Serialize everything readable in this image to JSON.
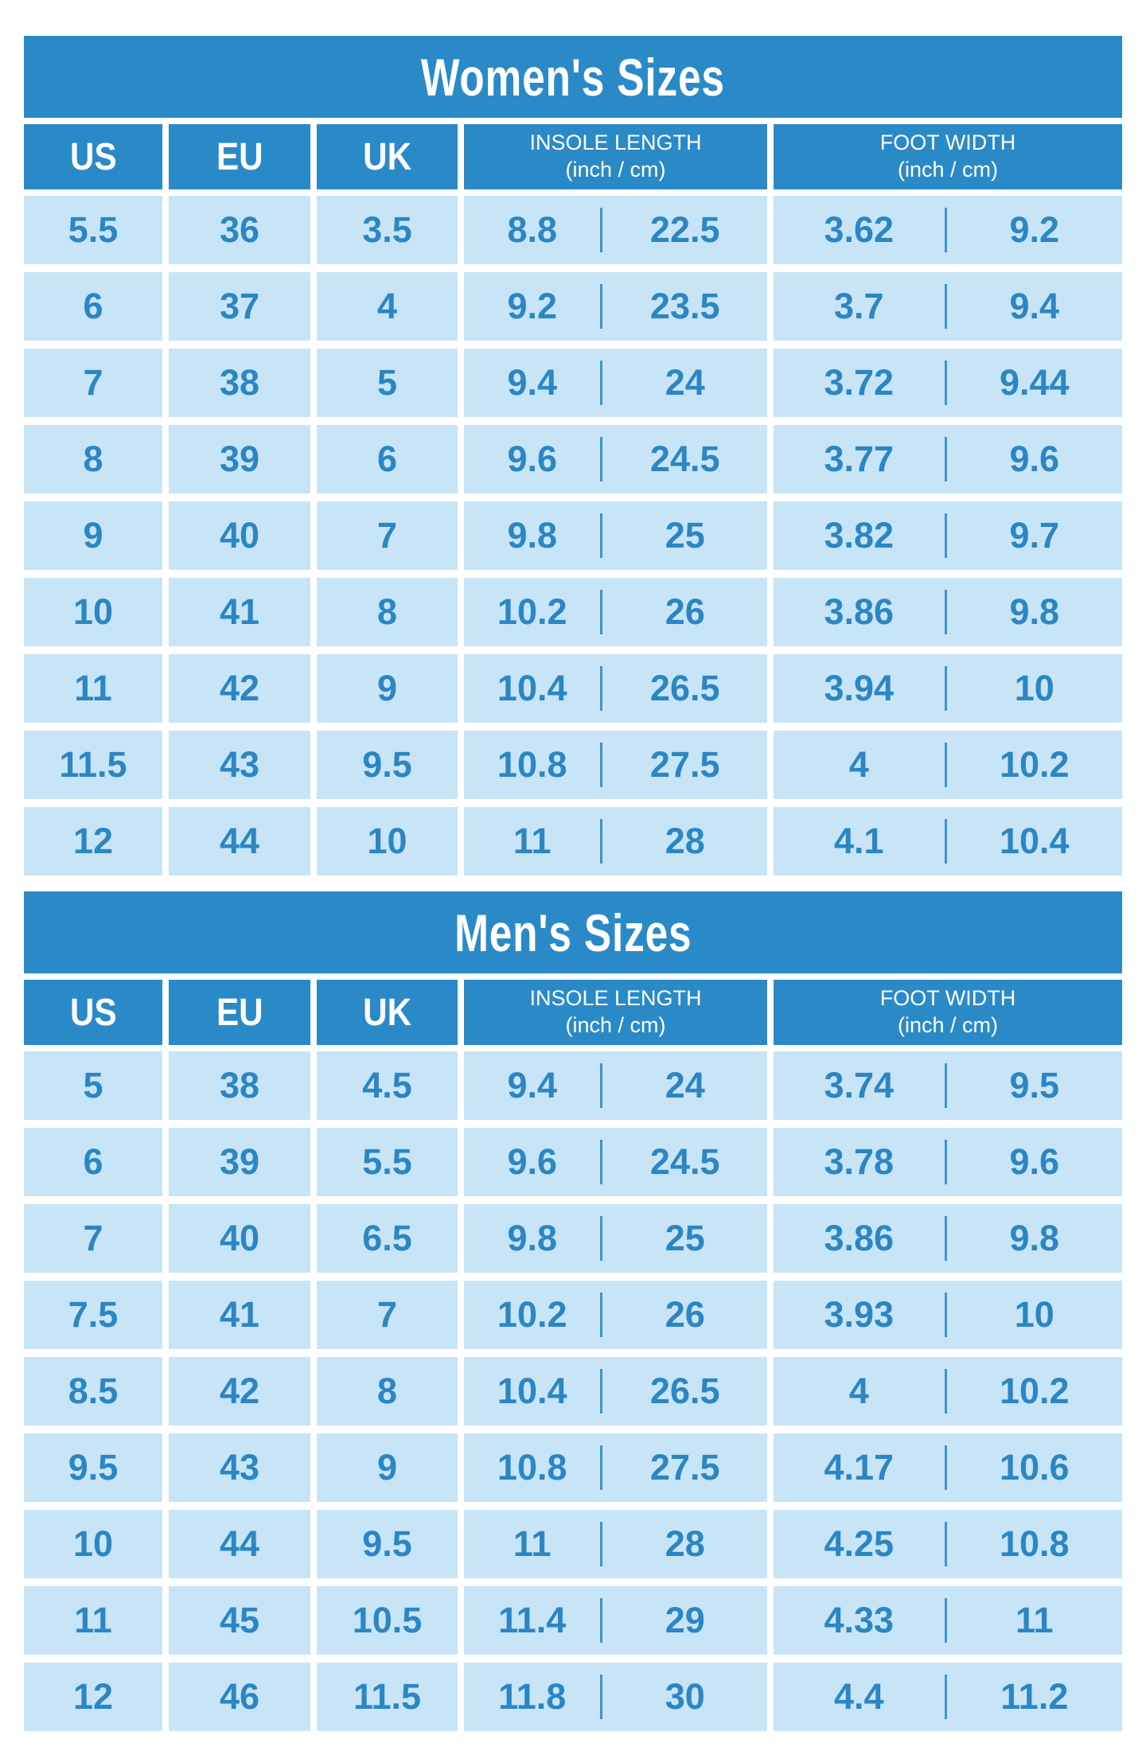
{
  "colors": {
    "header_blue": "#2a8ac8",
    "cell_blue": "#c8e4f7",
    "number_blue": "#2b86c3",
    "divider_blue": "#3e94cd",
    "background": "#ffffff",
    "header_text": "#ffffff"
  },
  "chart_data": [
    {
      "type": "table",
      "title": "Women's Sizes",
      "header": {
        "us": "US",
        "eu": "EU",
        "uk": "UK",
        "insole_line1": "INSOLE LENGTH",
        "insole_line2": "(inch / cm)",
        "foot_line1": "FOOT WIDTH",
        "foot_line2": "(inch / cm)"
      },
      "columns": [
        "US",
        "EU",
        "UK",
        "INSOLE LENGTH inch",
        "INSOLE LENGTH cm",
        "FOOT WIDTH inch",
        "FOOT WIDTH cm"
      ],
      "rows": [
        [
          "5.5",
          "36",
          "3.5",
          "8.8",
          "22.5",
          "3.62",
          "9.2"
        ],
        [
          "6",
          "37",
          "4",
          "9.2",
          "23.5",
          "3.7",
          "9.4"
        ],
        [
          "7",
          "38",
          "5",
          "9.4",
          "24",
          "3.72",
          "9.44"
        ],
        [
          "8",
          "39",
          "6",
          "9.6",
          "24.5",
          "3.77",
          "9.6"
        ],
        [
          "9",
          "40",
          "7",
          "9.8",
          "25",
          "3.82",
          "9.7"
        ],
        [
          "10",
          "41",
          "8",
          "10.2",
          "26",
          "3.86",
          "9.8"
        ],
        [
          "11",
          "42",
          "9",
          "10.4",
          "26.5",
          "3.94",
          "10"
        ],
        [
          "11.5",
          "43",
          "9.5",
          "10.8",
          "27.5",
          "4",
          "10.2"
        ],
        [
          "12",
          "44",
          "10",
          "11",
          "28",
          "4.1",
          "10.4"
        ]
      ]
    },
    {
      "type": "table",
      "title": "Men's Sizes",
      "header": {
        "us": "US",
        "eu": "EU",
        "uk": "UK",
        "insole_line1": "INSOLE LENGTH",
        "insole_line2": "(inch / cm)",
        "foot_line1": "FOOT WIDTH",
        "foot_line2": "(inch / cm)"
      },
      "columns": [
        "US",
        "EU",
        "UK",
        "INSOLE LENGTH inch",
        "INSOLE LENGTH cm",
        "FOOT WIDTH inch",
        "FOOT WIDTH cm"
      ],
      "rows": [
        [
          "5",
          "38",
          "4.5",
          "9.4",
          "24",
          "3.74",
          "9.5"
        ],
        [
          "6",
          "39",
          "5.5",
          "9.6",
          "24.5",
          "3.78",
          "9.6"
        ],
        [
          "7",
          "40",
          "6.5",
          "9.8",
          "25",
          "3.86",
          "9.8"
        ],
        [
          "7.5",
          "41",
          "7",
          "10.2",
          "26",
          "3.93",
          "10"
        ],
        [
          "8.5",
          "42",
          "8",
          "10.4",
          "26.5",
          "4",
          "10.2"
        ],
        [
          "9.5",
          "43",
          "9",
          "10.8",
          "27.5",
          "4.17",
          "10.6"
        ],
        [
          "10",
          "44",
          "9.5",
          "11",
          "28",
          "4.25",
          "10.8"
        ],
        [
          "11",
          "45",
          "10.5",
          "11.4",
          "29",
          "4.33",
          "11"
        ],
        [
          "12",
          "46",
          "11.5",
          "11.8",
          "30",
          "4.4",
          "11.2"
        ]
      ]
    }
  ]
}
